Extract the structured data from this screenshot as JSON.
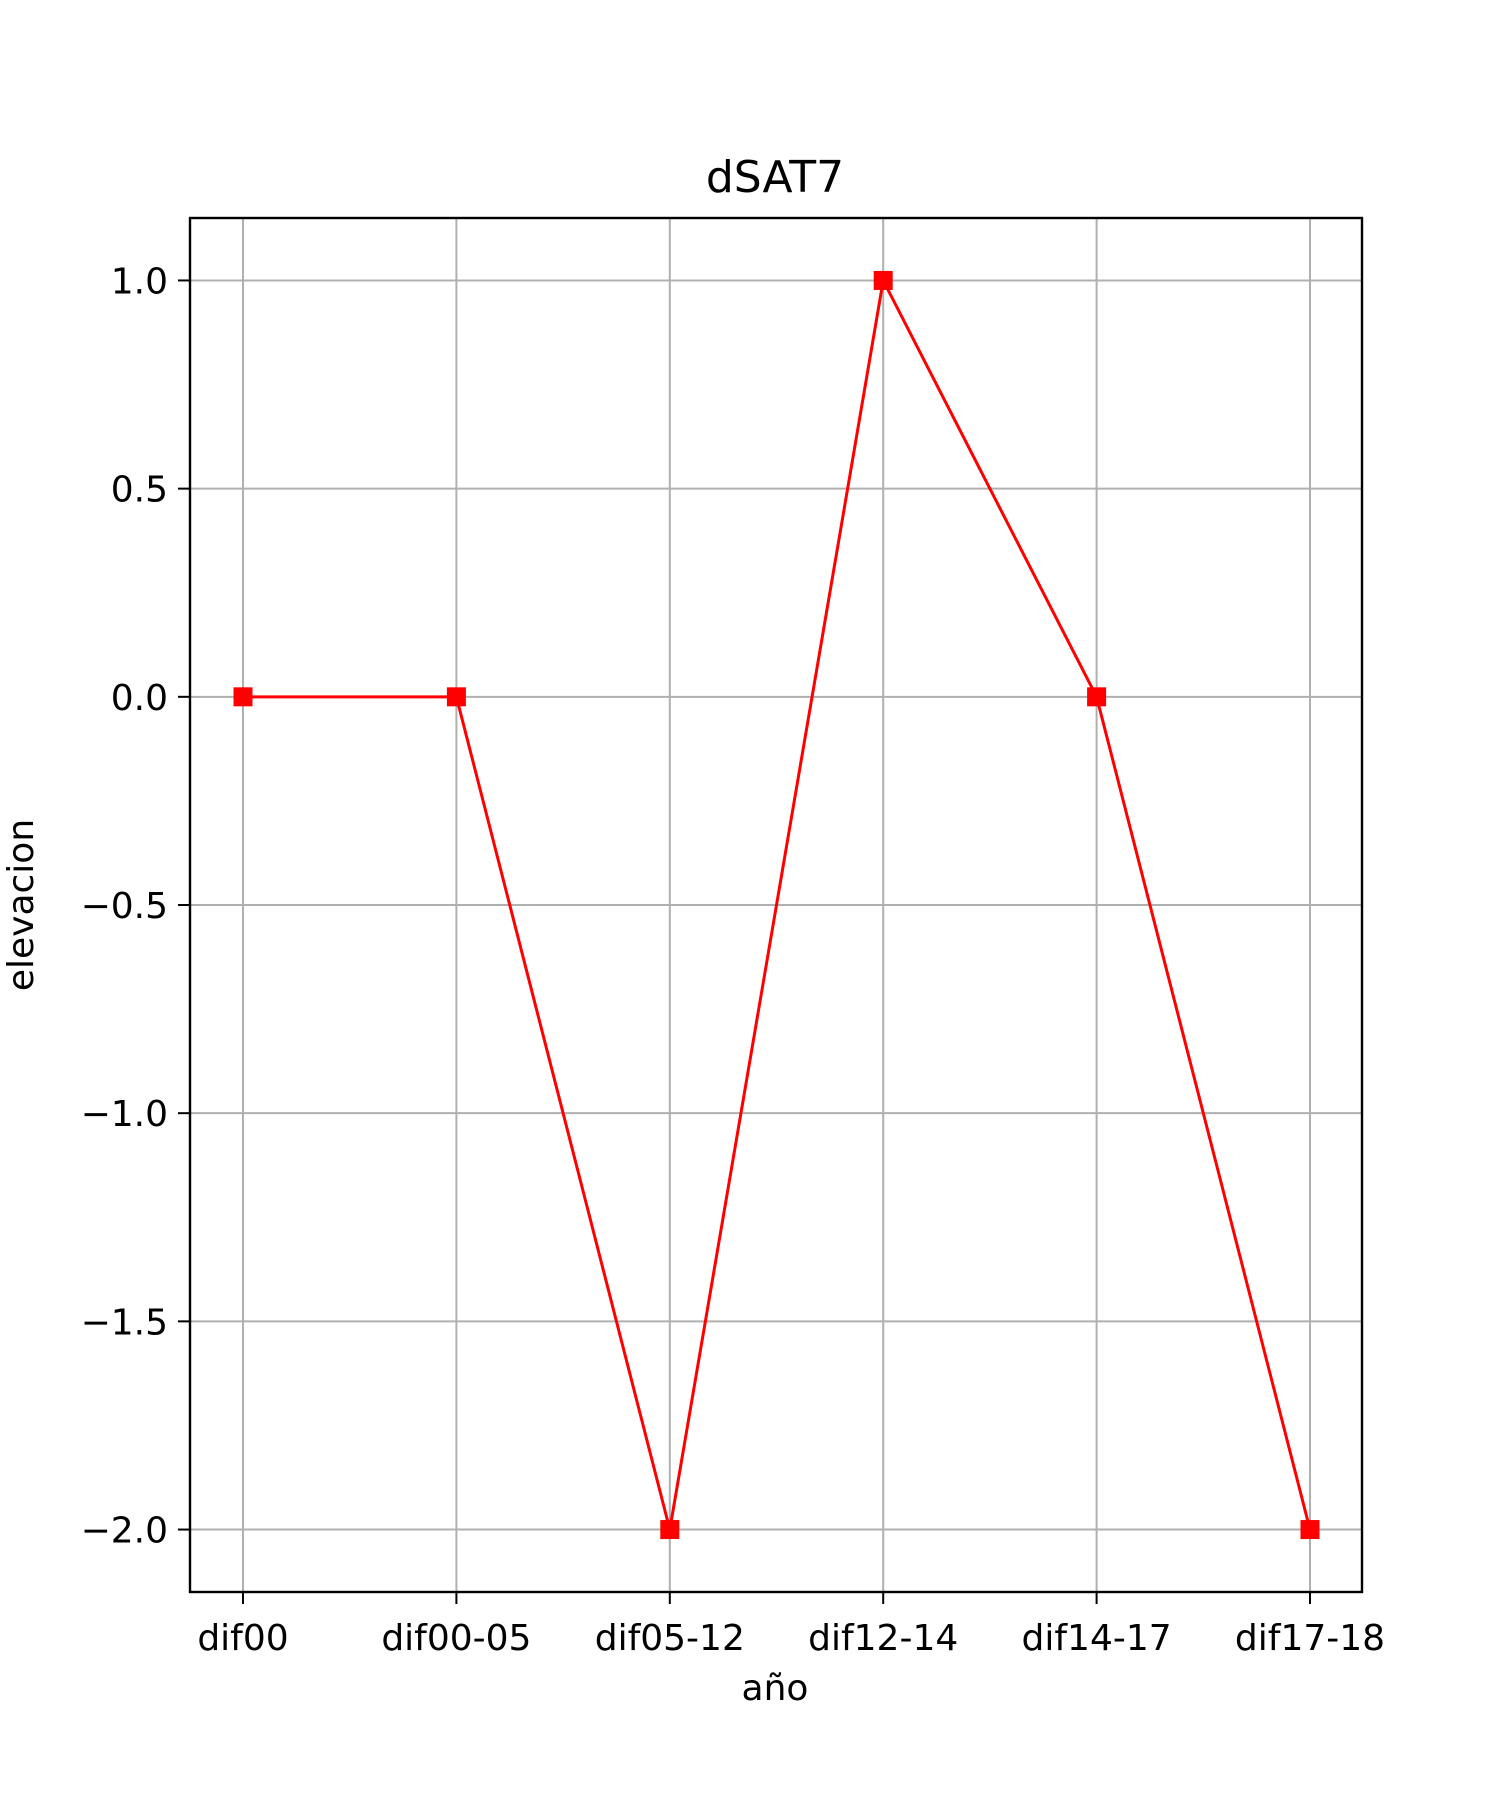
{
  "chart_data": {
    "type": "line",
    "title": "dSAT7",
    "xlabel": "año",
    "ylabel": "elevacion",
    "categories": [
      "dif00",
      "dif00-05",
      "dif05-12",
      "dif12-14",
      "dif14-17",
      "dif17-18"
    ],
    "series": [
      {
        "values": [
          0,
          0,
          -2,
          1,
          0,
          -2
        ],
        "color": "#ff0000",
        "marker": "square"
      }
    ],
    "ylim": [
      -2.15,
      1.15
    ],
    "yticks": [
      1.0,
      0.5,
      0.0,
      -0.5,
      -1.0,
      -1.5,
      -2.0
    ],
    "ytick_labels": [
      "1.0",
      "0.5",
      "0.0",
      "−0.5",
      "−1.0",
      "−1.5",
      "−2.0"
    ],
    "grid": true,
    "colors": {
      "grid": "#b0b0b0",
      "frame": "#000000",
      "line": "#ff0000"
    }
  }
}
